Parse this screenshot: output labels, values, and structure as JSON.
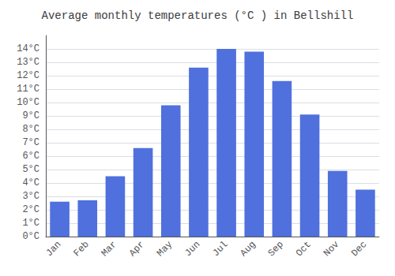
{
  "chart_data": {
    "type": "bar",
    "title": "Average monthly temperatures (°C ) in Bellshill",
    "categories": [
      "Jan",
      "Feb",
      "Mar",
      "Apr",
      "May",
      "Jun",
      "Jul",
      "Aug",
      "Sep",
      "Oct",
      "Nov",
      "Dec"
    ],
    "values": [
      2.6,
      2.7,
      4.5,
      6.6,
      9.8,
      12.6,
      14.0,
      13.8,
      11.6,
      9.1,
      4.9,
      3.5
    ],
    "ylim": [
      0,
      15
    ],
    "yticks": [
      {
        "value": 0,
        "label": "0°C"
      },
      {
        "value": 1,
        "label": "1°C"
      },
      {
        "value": 2,
        "label": "2°C"
      },
      {
        "value": 3,
        "label": "3°C"
      },
      {
        "value": 4,
        "label": "4°C"
      },
      {
        "value": 5,
        "label": "5°C"
      },
      {
        "value": 6,
        "label": "6°C"
      },
      {
        "value": 7,
        "label": "7°C"
      },
      {
        "value": 8,
        "label": "8°C"
      },
      {
        "value": 9,
        "label": "9°C"
      },
      {
        "value": 10,
        "label": "10°C"
      },
      {
        "value": 11,
        "label": "11°C"
      },
      {
        "value": 12,
        "label": "12°C"
      },
      {
        "value": 13,
        "label": "13°C"
      },
      {
        "value": 14,
        "label": "14°C"
      }
    ],
    "grid": true
  }
}
